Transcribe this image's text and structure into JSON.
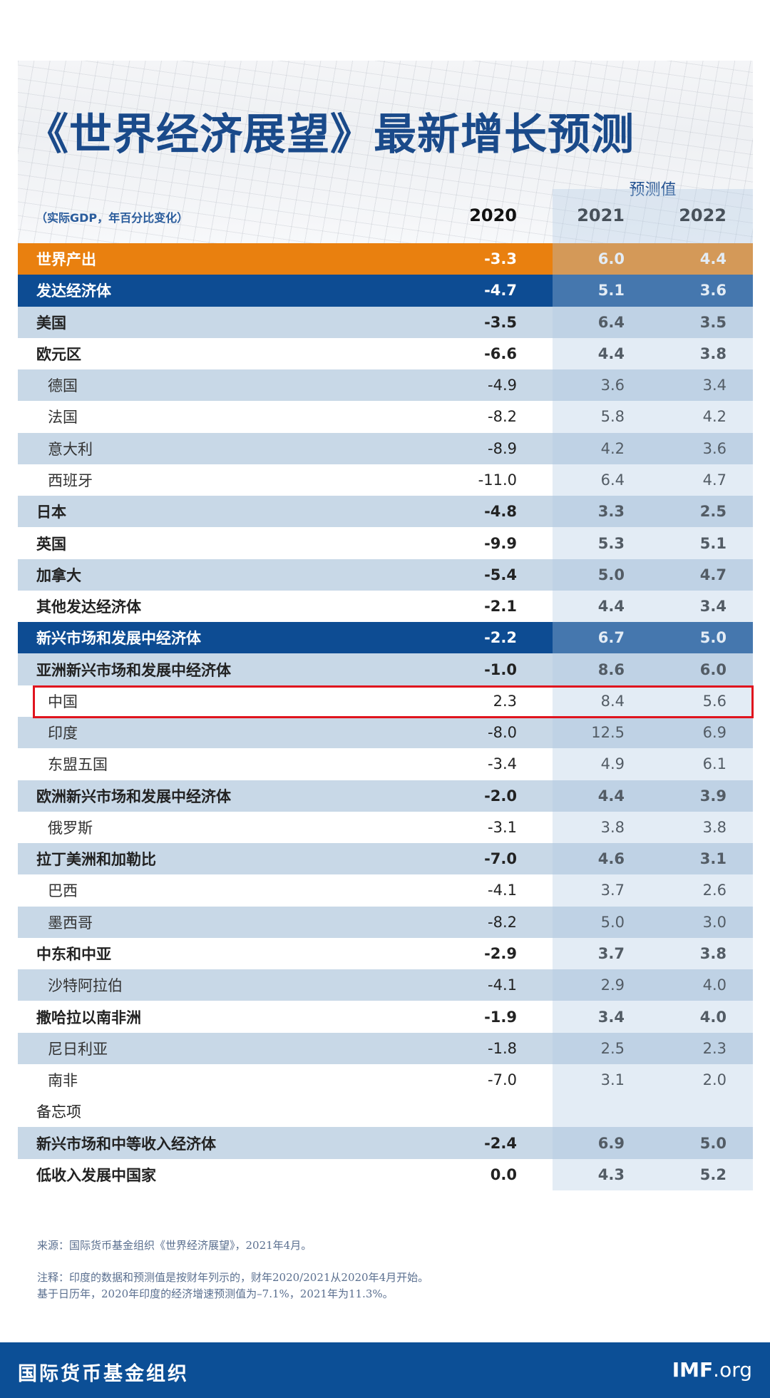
{
  "title": "《世界经济展望》最新增长预测",
  "subtitle": "（实际GDP，年百分比变化）",
  "forecast_label": "预测值",
  "years": [
    "2020",
    "2021",
    "2022"
  ],
  "rows": [
    {
      "label": "世界产出",
      "values": [
        "-3.3",
        "6.0",
        "4.4"
      ],
      "style": "orange"
    },
    {
      "label": "发达经济体",
      "values": [
        "-4.7",
        "5.1",
        "3.6"
      ],
      "style": "dark"
    },
    {
      "label": "美国",
      "values": [
        "-3.5",
        "6.4",
        "3.5"
      ],
      "style": "bold",
      "shaded": true
    },
    {
      "label": "欧元区",
      "values": [
        "-6.6",
        "4.4",
        "3.8"
      ],
      "style": "bold"
    },
    {
      "label": "德国",
      "values": [
        "-4.9",
        "3.6",
        "3.4"
      ],
      "style": "indent",
      "shaded": true
    },
    {
      "label": "法国",
      "values": [
        "-8.2",
        "5.8",
        "4.2"
      ],
      "style": "indent"
    },
    {
      "label": "意大利",
      "values": [
        "-8.9",
        "4.2",
        "3.6"
      ],
      "style": "indent",
      "shaded": true
    },
    {
      "label": "西班牙",
      "values": [
        "-11.0",
        "6.4",
        "4.7"
      ],
      "style": "indent"
    },
    {
      "label": "日本",
      "values": [
        "-4.8",
        "3.3",
        "2.5"
      ],
      "style": "bold",
      "shaded": true
    },
    {
      "label": "英国",
      "values": [
        "-9.9",
        "5.3",
        "5.1"
      ],
      "style": "bold"
    },
    {
      "label": "加拿大",
      "values": [
        "-5.4",
        "5.0",
        "4.7"
      ],
      "style": "bold",
      "shaded": true
    },
    {
      "label": "其他发达经济体",
      "values": [
        "-2.1",
        "4.4",
        "3.4"
      ],
      "style": "bold"
    },
    {
      "label": "新兴市场和发展中经济体",
      "values": [
        "-2.2",
        "6.7",
        "5.0"
      ],
      "style": "dark"
    },
    {
      "label": "亚洲新兴市场和发展中经济体",
      "values": [
        "-1.0",
        "8.6",
        "6.0"
      ],
      "style": "bold",
      "shaded": true
    },
    {
      "label": "中国",
      "values": [
        "2.3",
        "8.4",
        "5.6"
      ],
      "style": "indent",
      "highlighted": true
    },
    {
      "label": "印度",
      "values": [
        "-8.0",
        "12.5",
        "6.9"
      ],
      "style": "indent",
      "shaded": true
    },
    {
      "label": "东盟五国",
      "values": [
        "-3.4",
        "4.9",
        "6.1"
      ],
      "style": "indent"
    },
    {
      "label": "欧洲新兴市场和发展中经济体",
      "values": [
        "-2.0",
        "4.4",
        "3.9"
      ],
      "style": "bold",
      "shaded": true
    },
    {
      "label": "俄罗斯",
      "values": [
        "-3.1",
        "3.8",
        "3.8"
      ],
      "style": "indent"
    },
    {
      "label": "拉丁美洲和加勒比",
      "values": [
        "-7.0",
        "4.6",
        "3.1"
      ],
      "style": "bold",
      "shaded": true
    },
    {
      "label": "巴西",
      "values": [
        "-4.1",
        "3.7",
        "2.6"
      ],
      "style": "indent"
    },
    {
      "label": "墨西哥",
      "values": [
        "-8.2",
        "5.0",
        "3.0"
      ],
      "style": "indent",
      "shaded": true
    },
    {
      "label": "中东和中亚",
      "values": [
        "-2.9",
        "3.7",
        "3.8"
      ],
      "style": "bold"
    },
    {
      "label": "沙特阿拉伯",
      "values": [
        "-4.1",
        "2.9",
        "4.0"
      ],
      "style": "indent",
      "shaded": true
    },
    {
      "label": "撒哈拉以南非洲",
      "values": [
        "-1.9",
        "3.4",
        "4.0"
      ],
      "style": "bold"
    },
    {
      "label": "尼日利亚",
      "values": [
        "-1.8",
        "2.5",
        "2.3"
      ],
      "style": "indent",
      "shaded": true
    },
    {
      "label": "南非",
      "values": [
        "-7.0",
        "3.1",
        "2.0"
      ],
      "style": "indent"
    },
    {
      "label": "备忘项",
      "values": [
        "",
        "",
        ""
      ],
      "style": "plain"
    },
    {
      "label": "新兴市场和中等收入经济体",
      "values": [
        "-2.4",
        "6.9",
        "5.0"
      ],
      "style": "bold",
      "shaded": true
    },
    {
      "label": "低收入发展中国家",
      "values": [
        "0.0",
        "4.3",
        "5.2"
      ],
      "style": "bold"
    }
  ],
  "notes": {
    "source": "来源：国际货币基金组织《世界经济展望》，2021年4月。",
    "note_line1": "注释：印度的数据和预测值是按财年列示的，财年2020/2021从2020年4月开始。",
    "note_line2": "基于日历年，2020年印度的经济增速预测值为–7.1%，2021年为11.3%。"
  },
  "footer": {
    "org": "国际货币基金组织",
    "site_main": "IMF",
    "site_suffix": ".org"
  },
  "colors": {
    "title": "#1a4a8a",
    "orange_row": "#e9800f",
    "dark_row": "#0d4c93",
    "shaded_row": "#c8d8e7",
    "highlight_border": "#e0141e",
    "footer": "#0c4f96"
  }
}
